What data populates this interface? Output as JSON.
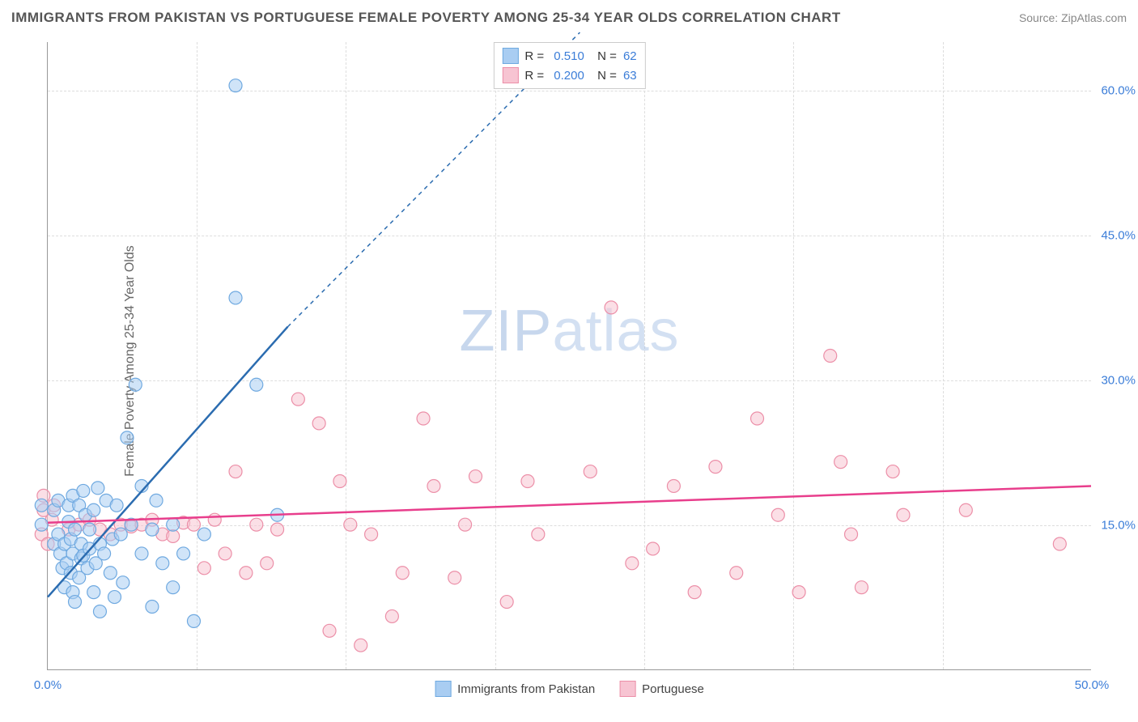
{
  "title": "IMMIGRANTS FROM PAKISTAN VS PORTUGUESE FEMALE POVERTY AMONG 25-34 YEAR OLDS CORRELATION CHART",
  "source": "Source: ZipAtlas.com",
  "watermark_a": "ZIP",
  "watermark_b": "atlas",
  "y_axis_title": "Female Poverty Among 25-34 Year Olds",
  "chart": {
    "type": "scatter",
    "xlim": [
      0,
      50
    ],
    "ylim": [
      0,
      65
    ],
    "x_ticks": [
      0,
      50
    ],
    "x_tick_labels": [
      "0.0%",
      "50.0%"
    ],
    "y_ticks": [
      15,
      30,
      45,
      60
    ],
    "y_tick_labels": [
      "15.0%",
      "30.0%",
      "45.0%",
      "60.0%"
    ],
    "x_tick_minor": [
      7.14,
      14.28,
      21.42,
      28.57,
      35.71,
      42.85
    ],
    "background_color": "#ffffff",
    "grid_color": "#dddddd",
    "marker_radius": 8,
    "marker_stroke_width": 1.2,
    "line_width": 2.5,
    "dash_pattern": "5,5",
    "series": [
      {
        "name": "Immigrants from Pakistan",
        "color_fill": "#a9cdf2",
        "color_stroke": "#6fa9e0",
        "line_color": "#2b6cb0",
        "R": "0.510",
        "N": "62",
        "trend": {
          "x1": 0,
          "y1": 7.5,
          "x2": 11.5,
          "y2": 35.5,
          "x_ext": 25.5,
          "y_ext": 66
        },
        "points": [
          [
            0.3,
            13.0
          ],
          [
            0.3,
            16.5
          ],
          [
            0.5,
            14.0
          ],
          [
            0.5,
            17.5
          ],
          [
            -0.3,
            15.0
          ],
          [
            -0.3,
            17.0
          ],
          [
            0.6,
            12.0
          ],
          [
            0.7,
            10.5
          ],
          [
            0.8,
            13.0
          ],
          [
            0.8,
            8.5
          ],
          [
            0.9,
            11.0
          ],
          [
            1.0,
            17.0
          ],
          [
            1.0,
            15.3
          ],
          [
            1.1,
            10.0
          ],
          [
            1.1,
            13.5
          ],
          [
            1.2,
            12.0
          ],
          [
            1.2,
            18.0
          ],
          [
            1.2,
            8.0
          ],
          [
            1.3,
            14.5
          ],
          [
            1.3,
            7.0
          ],
          [
            1.5,
            17.0
          ],
          [
            1.5,
            9.5
          ],
          [
            1.6,
            11.5
          ],
          [
            1.6,
            13.0
          ],
          [
            1.7,
            11.8
          ],
          [
            1.7,
            18.5
          ],
          [
            1.8,
            16.0
          ],
          [
            1.9,
            10.5
          ],
          [
            2.0,
            14.5
          ],
          [
            2.0,
            12.5
          ],
          [
            2.2,
            16.5
          ],
          [
            2.2,
            8.0
          ],
          [
            2.3,
            11.0
          ],
          [
            2.4,
            18.8
          ],
          [
            2.5,
            13.0
          ],
          [
            2.5,
            6.0
          ],
          [
            2.7,
            12.0
          ],
          [
            2.8,
            17.5
          ],
          [
            3.0,
            10.0
          ],
          [
            3.1,
            13.5
          ],
          [
            3.2,
            7.5
          ],
          [
            3.3,
            17.0
          ],
          [
            3.5,
            14.0
          ],
          [
            3.6,
            9.0
          ],
          [
            3.8,
            24.0
          ],
          [
            4.0,
            15.0
          ],
          [
            4.2,
            29.5
          ],
          [
            4.5,
            12.0
          ],
          [
            4.5,
            19.0
          ],
          [
            5.0,
            6.5
          ],
          [
            5.0,
            14.5
          ],
          [
            5.2,
            17.5
          ],
          [
            5.5,
            11.0
          ],
          [
            6.0,
            8.5
          ],
          [
            6.0,
            15.0
          ],
          [
            6.5,
            12.0
          ],
          [
            7.0,
            5.0
          ],
          [
            7.5,
            14.0
          ],
          [
            9.0,
            38.5
          ],
          [
            9.0,
            60.5
          ],
          [
            10.0,
            29.5
          ],
          [
            11.0,
            16.0
          ]
        ]
      },
      {
        "name": "Portuguese",
        "color_fill": "#f7c4d2",
        "color_stroke": "#ec8fa8",
        "line_color": "#e83e8c",
        "R": "0.200",
        "N": "63",
        "trend": {
          "x1": 0,
          "y1": 15.2,
          "x2": 50,
          "y2": 19.0
        },
        "points": [
          [
            -0.3,
            14.0
          ],
          [
            -0.2,
            16.5
          ],
          [
            0.0,
            13.0
          ],
          [
            0.2,
            15.5
          ],
          [
            0.3,
            17.0
          ],
          [
            -0.2,
            18.0
          ],
          [
            1.0,
            14.5
          ],
          [
            1.5,
            15.0
          ],
          [
            2.0,
            15.5
          ],
          [
            2.5,
            14.5
          ],
          [
            3.0,
            14.0
          ],
          [
            3.5,
            15.0
          ],
          [
            4.0,
            14.8
          ],
          [
            4.5,
            15.0
          ],
          [
            5.0,
            15.5
          ],
          [
            5.5,
            14.0
          ],
          [
            6.0,
            13.8
          ],
          [
            6.5,
            15.2
          ],
          [
            7.0,
            15.0
          ],
          [
            7.5,
            10.5
          ],
          [
            8.0,
            15.5
          ],
          [
            8.5,
            12.0
          ],
          [
            9.0,
            20.5
          ],
          [
            9.5,
            10.0
          ],
          [
            10.0,
            15.0
          ],
          [
            10.5,
            11.0
          ],
          [
            11.0,
            14.5
          ],
          [
            12.0,
            28.0
          ],
          [
            13.0,
            25.5
          ],
          [
            13.5,
            4.0
          ],
          [
            14.0,
            19.5
          ],
          [
            14.5,
            15.0
          ],
          [
            15.0,
            2.5
          ],
          [
            15.5,
            14.0
          ],
          [
            16.5,
            5.5
          ],
          [
            17.0,
            10.0
          ],
          [
            18.0,
            26.0
          ],
          [
            18.5,
            19.0
          ],
          [
            19.5,
            9.5
          ],
          [
            20.0,
            15.0
          ],
          [
            20.5,
            20.0
          ],
          [
            22.0,
            7.0
          ],
          [
            23.0,
            19.5
          ],
          [
            23.5,
            14.0
          ],
          [
            26.0,
            20.5
          ],
          [
            27.0,
            37.5
          ],
          [
            28.0,
            11.0
          ],
          [
            29.0,
            12.5
          ],
          [
            30.0,
            19.0
          ],
          [
            31.0,
            8.0
          ],
          [
            32.0,
            21.0
          ],
          [
            33.0,
            10.0
          ],
          [
            34.0,
            26.0
          ],
          [
            35.0,
            16.0
          ],
          [
            36.0,
            8.0
          ],
          [
            37.5,
            32.5
          ],
          [
            38.0,
            21.5
          ],
          [
            38.5,
            14.0
          ],
          [
            39.0,
            8.5
          ],
          [
            40.5,
            20.5
          ],
          [
            41.0,
            16.0
          ],
          [
            44.0,
            16.5
          ],
          [
            48.5,
            13.0
          ]
        ]
      }
    ]
  }
}
